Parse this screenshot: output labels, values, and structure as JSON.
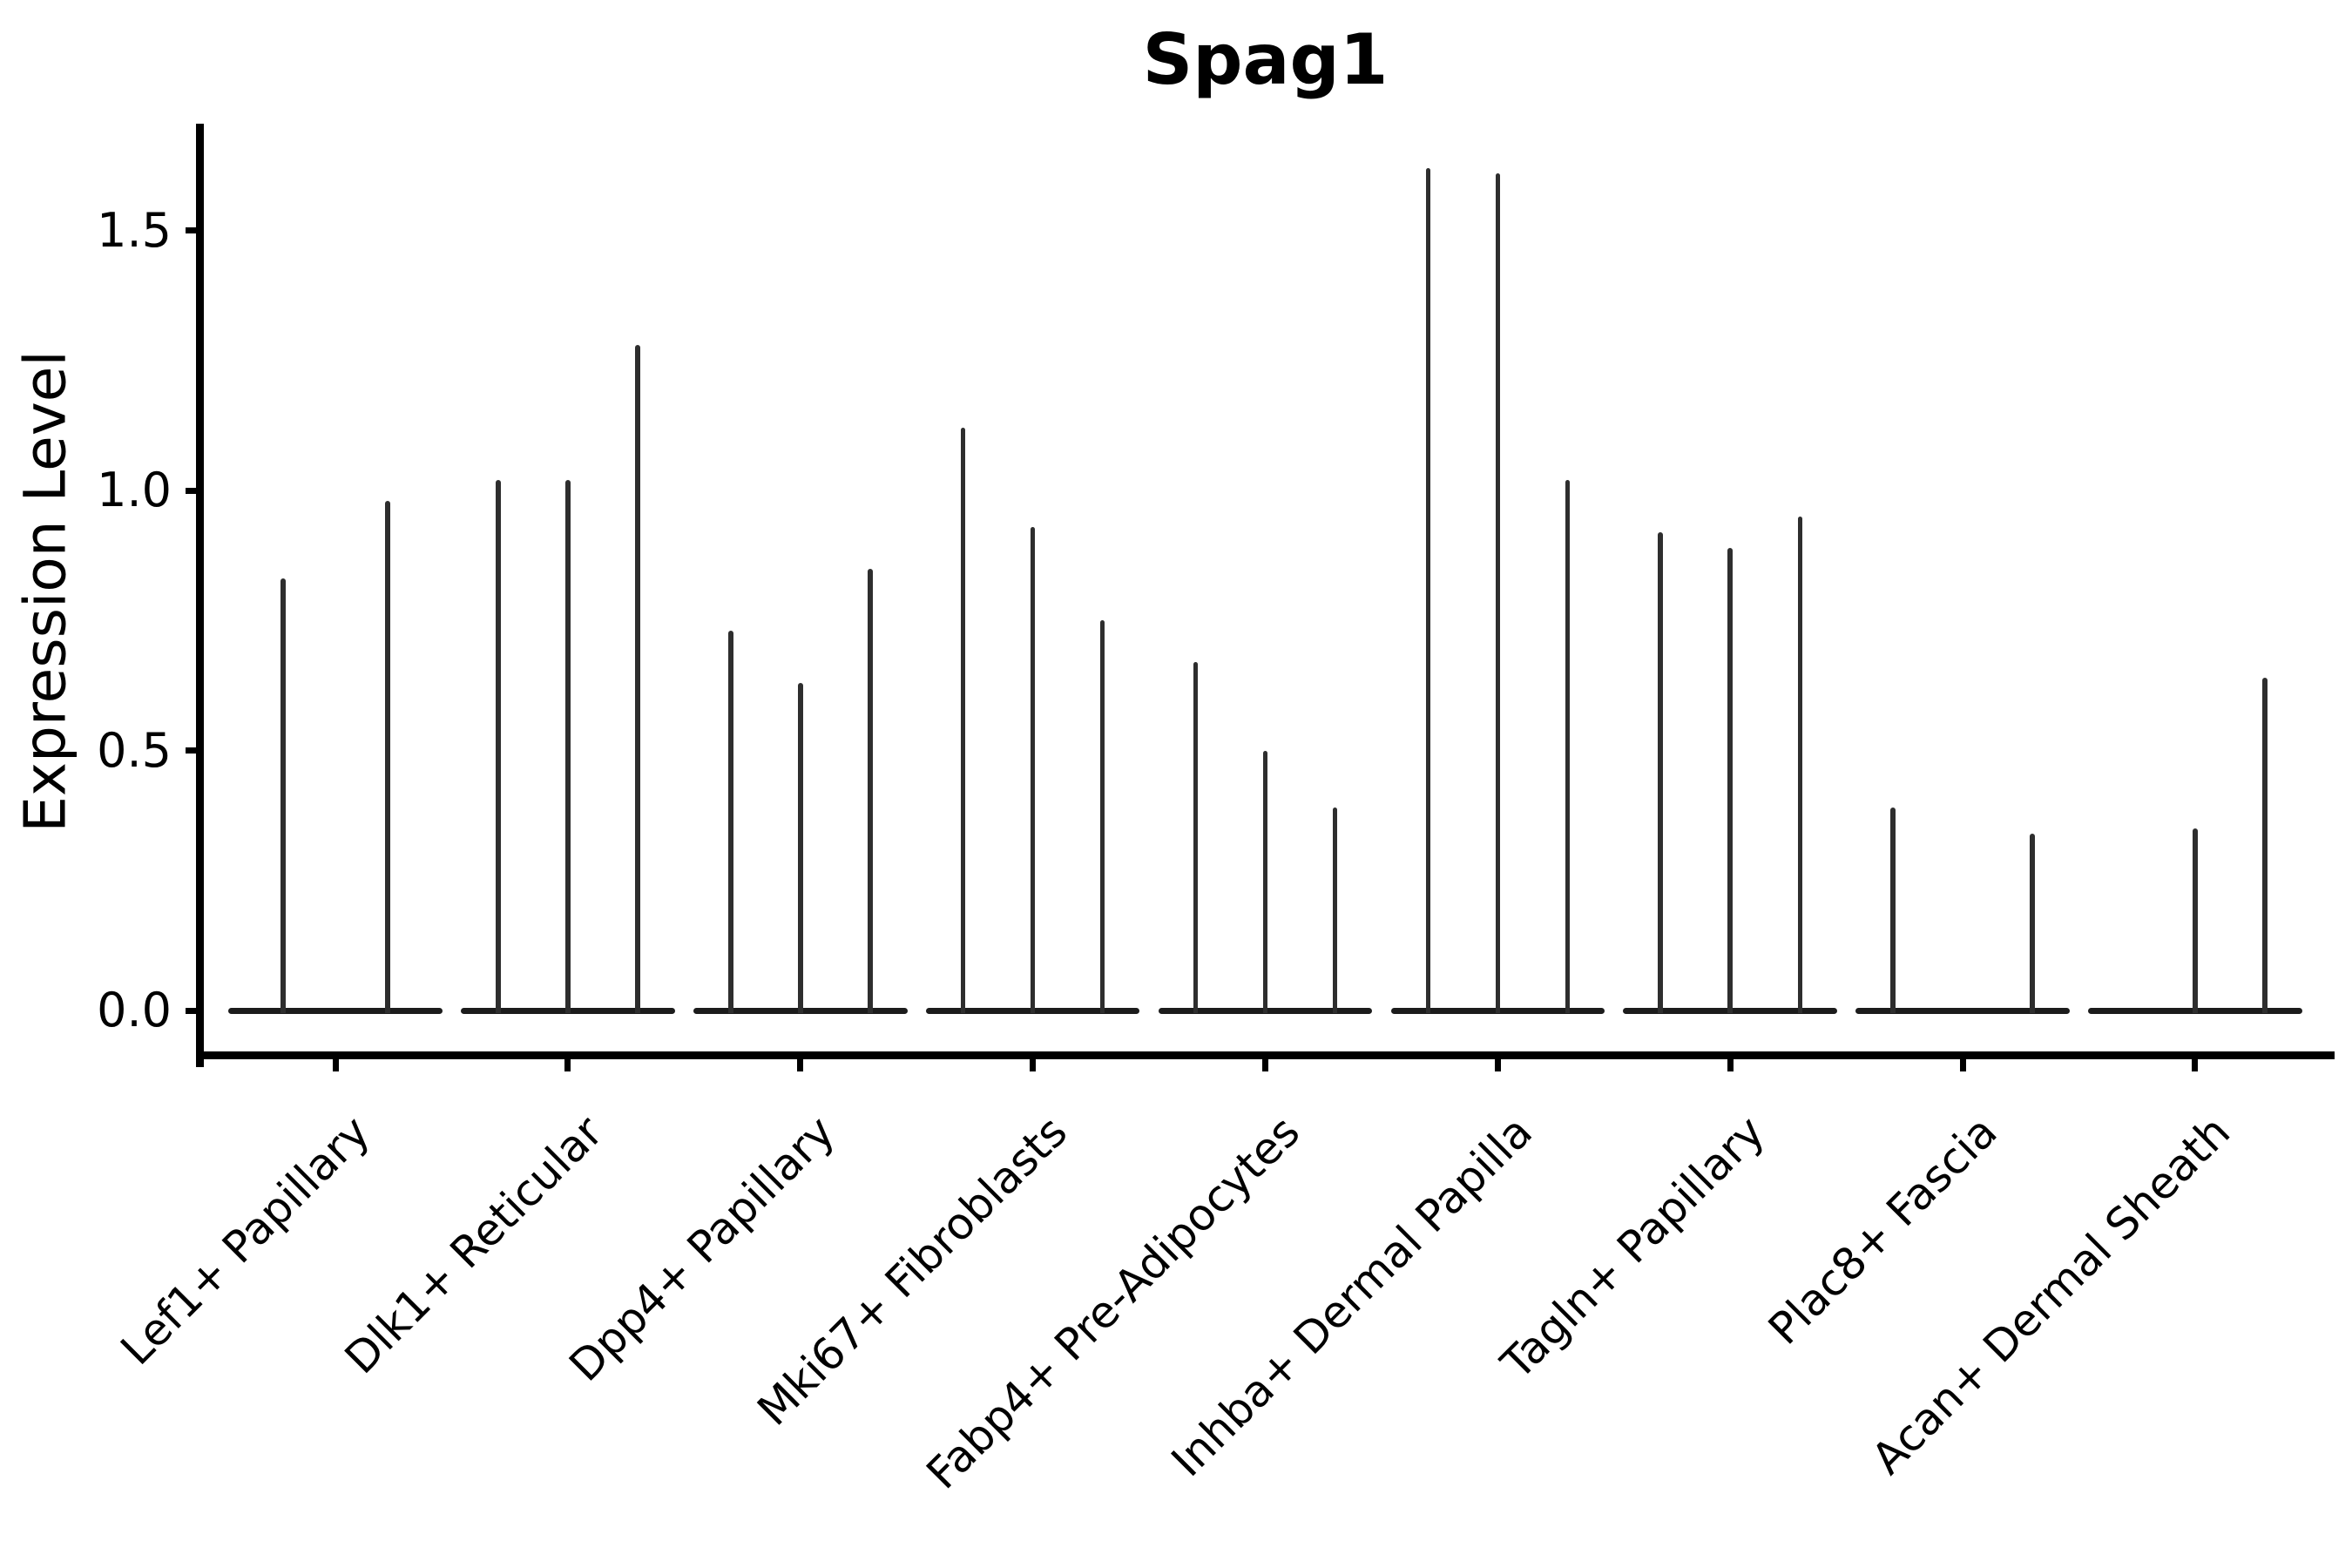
{
  "title": "Spag1",
  "colors": {
    "spike": "#2e2e2e",
    "baseline": "#1c1c1c",
    "axis": "#000000",
    "text": "#000000",
    "background": "#ffffff"
  },
  "chart_data": {
    "type": "violin",
    "title": "Spag1",
    "xlabel": "",
    "ylabel": "Expression Level",
    "ylim": [
      0,
      1.7
    ],
    "xlim": [
      0.4,
      9.6
    ],
    "grid": false,
    "legend": "none",
    "yticks": [
      {
        "value": 0.0,
        "label": "0.0"
      },
      {
        "value": 0.5,
        "label": "0.5"
      },
      {
        "value": 1.0,
        "label": "1.0"
      },
      {
        "value": 1.5,
        "label": "1.5"
      }
    ],
    "violin_style": "sparse-expression: wide flat body at 0 with thin tail spike up to max value",
    "categories": [
      {
        "label": "Lef1+ Papillary",
        "violins": [
          {
            "offset": -0.225,
            "max": 0.83
          },
          {
            "offset": 0.225,
            "max": 0.98
          }
        ]
      },
      {
        "label": "Dlk1+ Reticular",
        "violins": [
          {
            "offset": -0.3,
            "max": 1.02
          },
          {
            "offset": 0,
            "max": 1.02
          },
          {
            "offset": 0.3,
            "max": 1.28
          }
        ]
      },
      {
        "label": "Dpp4+ Papillary",
        "violins": [
          {
            "offset": -0.3,
            "max": 0.73
          },
          {
            "offset": 0,
            "max": 0.63
          },
          {
            "offset": 0.3,
            "max": 0.85
          }
        ]
      },
      {
        "label": "Mki67+ Fibroblasts",
        "violins": [
          {
            "offset": -0.3,
            "max": 1.12
          },
          {
            "offset": 0,
            "max": 0.93
          },
          {
            "offset": 0.3,
            "max": 0.75
          }
        ]
      },
      {
        "label": "Fabp4+ Pre-Adipocytes",
        "violins": [
          {
            "offset": -0.3,
            "max": 0.67
          },
          {
            "offset": 0,
            "max": 0.5
          },
          {
            "offset": 0.3,
            "max": 0.39
          }
        ]
      },
      {
        "label": "Inhba+ Dermal Papilla",
        "violins": [
          {
            "offset": -0.3,
            "max": 1.62
          },
          {
            "offset": 0,
            "max": 1.61
          },
          {
            "offset": 0.3,
            "max": 1.02
          }
        ]
      },
      {
        "label": "Tagln+ Papillary",
        "violins": [
          {
            "offset": -0.3,
            "max": 0.92
          },
          {
            "offset": 0,
            "max": 0.89
          },
          {
            "offset": 0.3,
            "max": 0.95
          }
        ]
      },
      {
        "label": "Plac8+ Fascia",
        "violins": [
          {
            "offset": -0.3,
            "max": 0.39
          },
          {
            "offset": 0,
            "max": 0.0
          },
          {
            "offset": 0.3,
            "max": 0.34
          }
        ]
      },
      {
        "label": "Acan+ Dermal Sheath",
        "violins": [
          {
            "offset": -0.3,
            "max": 0.0
          },
          {
            "offset": 0,
            "max": 0.35
          },
          {
            "offset": 0.3,
            "max": 0.64
          }
        ]
      }
    ]
  }
}
